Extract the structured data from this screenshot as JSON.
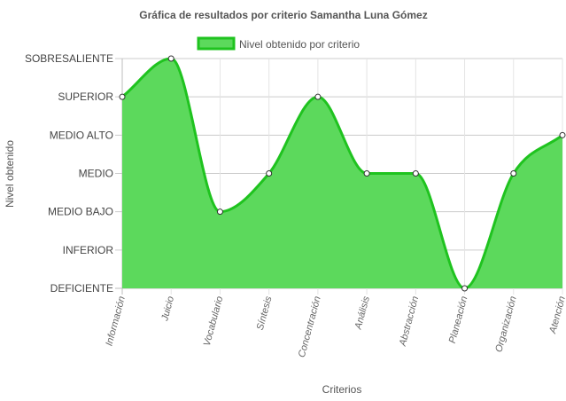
{
  "chart_data": {
    "type": "area",
    "title": "Gráfica de resultados por criterio Samantha Luna Gómez",
    "xlabel": "Criterios",
    "ylabel": "Nivel obtenido",
    "categories": [
      "Información",
      "Juicio",
      "Vocabulario",
      "Síntesis",
      "Concentración",
      "Análisis",
      "Abstracción",
      "Planeación",
      "Organización",
      "Atención"
    ],
    "levels": [
      "DEFICIENTE",
      "INFERIOR",
      "MEDIO BAJO",
      "MEDIO",
      "MEDIO ALTO",
      "SUPERIOR",
      "SOBRESALIENTE"
    ],
    "ylim": [
      0,
      6
    ],
    "series": [
      {
        "name": "Nivel obtenido por criterio",
        "values": [
          5,
          6,
          2,
          3,
          5,
          3,
          3,
          0,
          3,
          4
        ],
        "color": "#1fc31f",
        "fill": "#5cd95c"
      }
    ],
    "grid": true,
    "legend_position": "top"
  }
}
